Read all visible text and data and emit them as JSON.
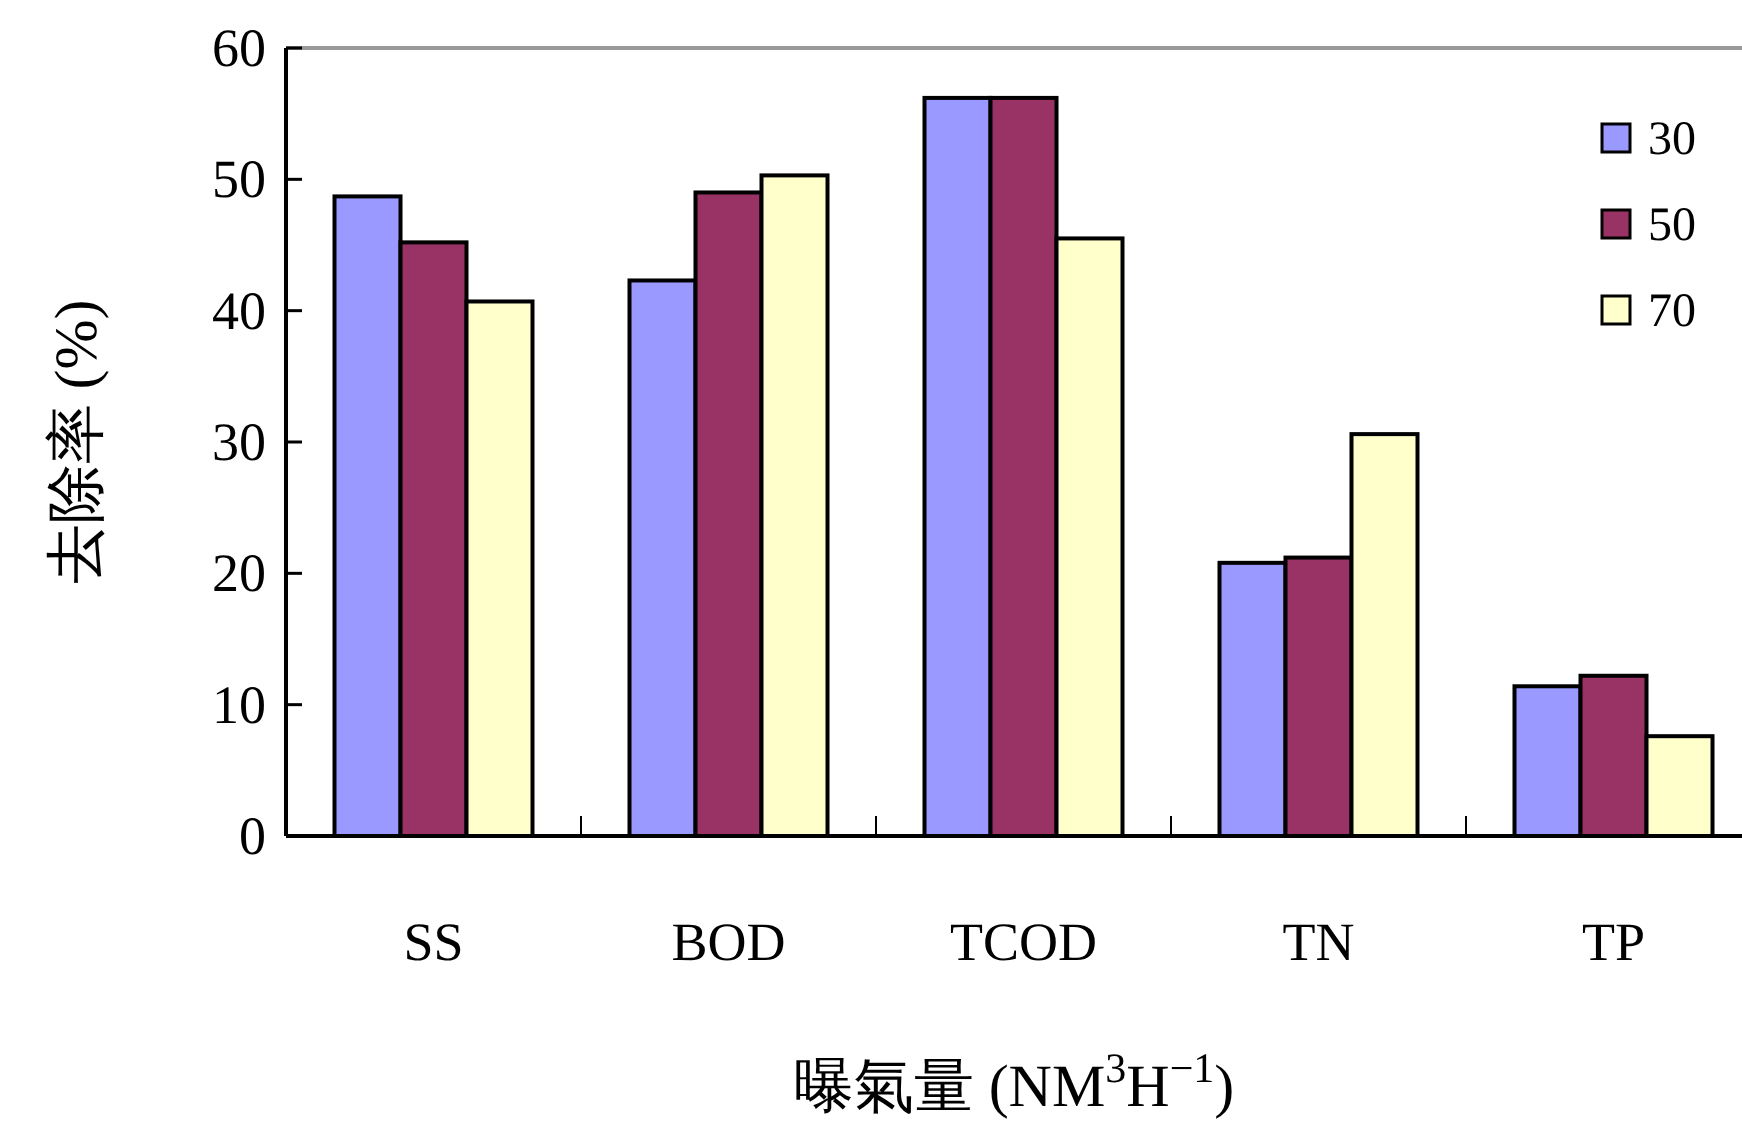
{
  "chart_data": {
    "type": "bar",
    "categories": [
      "SS",
      "BOD",
      "TCOD",
      "TN",
      "TP"
    ],
    "series": [
      {
        "name": "30",
        "color": "#9999ff",
        "values": [
          48.7,
          42.3,
          56.2,
          20.8,
          11.4
        ]
      },
      {
        "name": "50",
        "color": "#993366",
        "values": [
          45.2,
          49.0,
          56.2,
          21.2,
          12.2
        ]
      },
      {
        "name": "70",
        "color": "#ffffcc",
        "values": [
          40.7,
          50.3,
          45.5,
          30.6,
          7.6
        ]
      }
    ],
    "ylim": [
      0,
      60
    ],
    "yticks": [
      0,
      10,
      20,
      30,
      40,
      50,
      60
    ],
    "ylabel": "去除率 (%)",
    "xlabel": "曝氣量 (NM$^{3}$H$^{−1}$)",
    "legend": "top right"
  }
}
